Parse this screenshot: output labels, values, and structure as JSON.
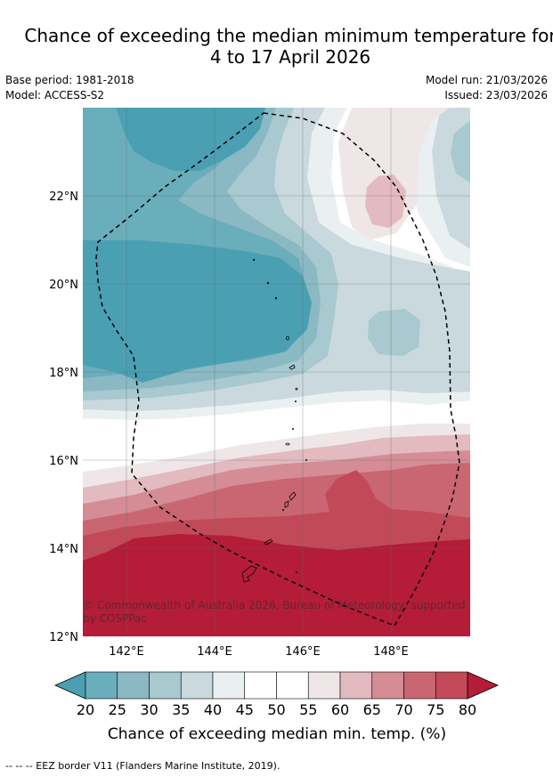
{
  "title": {
    "line1": "Chance of exceeding the median minimum temperature for",
    "line2": "4 to 17 April 2026"
  },
  "meta": {
    "base_period": "Base period: 1981-2018",
    "model": "Model: ACCESS-S2",
    "model_run": "Model run: 21/03/2026",
    "issued": "Issued: 23/03/2026"
  },
  "map": {
    "lat_labels": [
      "22°N",
      "20°N",
      "18°N",
      "16°N",
      "14°N",
      "12°N"
    ],
    "lon_labels": [
      "142°E",
      "144°E",
      "146°E",
      "148°E"
    ],
    "copyright_line1": "© Commonwealth of Australia 2026, Bureau of Meteorology, supported",
    "copyright_line2": "by COSPPac"
  },
  "colorbar": {
    "ticks": [
      "20",
      "25",
      "30",
      "35",
      "40",
      "45",
      "50",
      "55",
      "60",
      "65",
      "70",
      "75",
      "80"
    ],
    "label": "Chance of exceeding median min. temp. (%)",
    "colors": {
      "below20": "#4aa0b2",
      "b20_25": "#6aadbb",
      "b25_30": "#8ab9c4",
      "b30_35": "#a7c9cf",
      "b35_40": "#cad9de",
      "b40_45": "#eaf0f2",
      "b45_50": "#ffffff",
      "b50_55": "#ffffff",
      "b55_60": "#efe6e8",
      "b60_65": "#e2bac0",
      "b65_70": "#d58c95",
      "b70_75": "#c96672",
      "b75_80": "#c24a58",
      "above80": "#b41c38"
    }
  },
  "footnote": "--  --  -- EEZ border V11 (Flanders Marine Institute, 2019)."
}
